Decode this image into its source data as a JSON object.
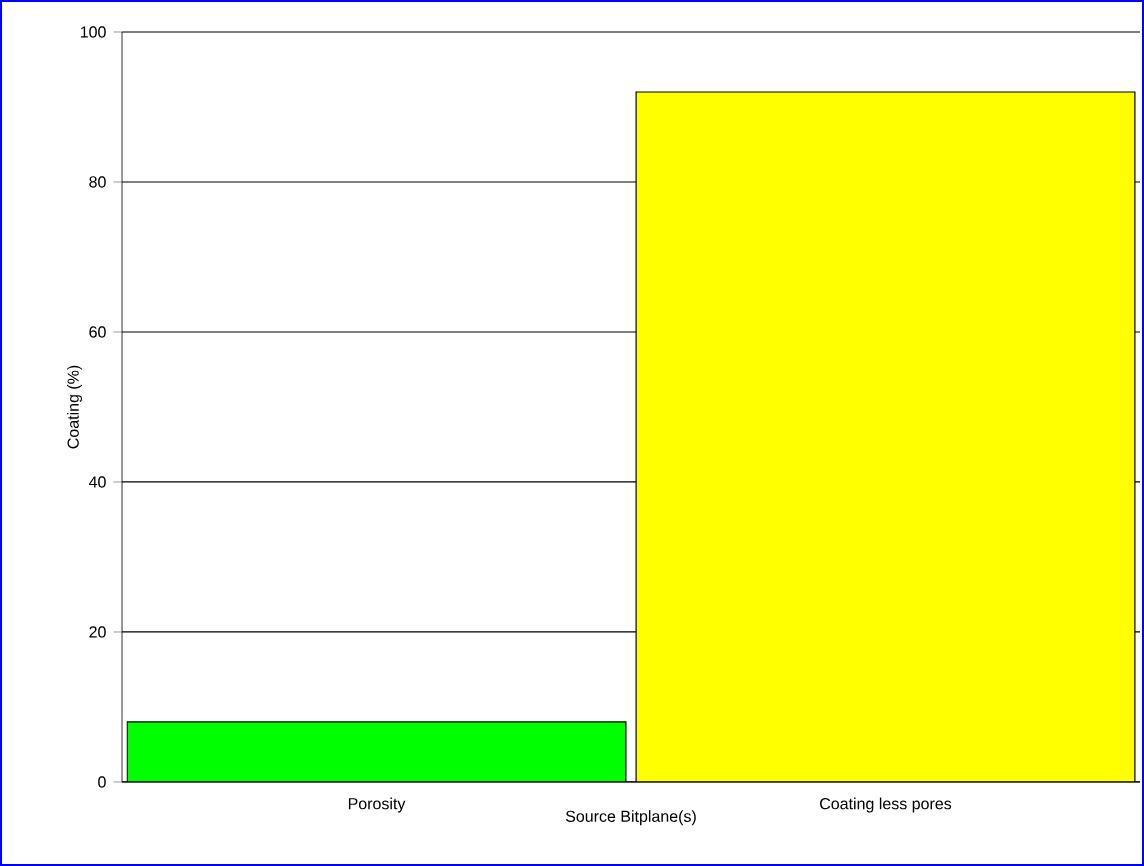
{
  "chart_data": {
    "type": "bar",
    "xlabel": "Source Bitplane(s)",
    "ylabel": "Coating (%)",
    "categories": [
      "Porosity",
      "Coating less pores"
    ],
    "values": [
      8,
      92
    ],
    "colors": [
      "#00ff00",
      "#ffff00"
    ],
    "ylim": [
      0,
      100
    ],
    "yticks": [
      0,
      20,
      40,
      60,
      80,
      100
    ],
    "grid": "y"
  }
}
